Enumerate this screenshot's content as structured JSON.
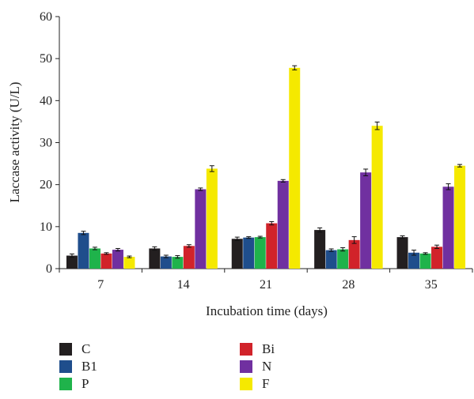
{
  "chart_data": {
    "type": "bar",
    "xlabel": "Incubation time (days)",
    "ylabel": "Laccase activity (U/L)",
    "ylim": [
      0,
      60
    ],
    "yticks": [
      0,
      10,
      20,
      30,
      40,
      50,
      60
    ],
    "categories": [
      "7",
      "14",
      "21",
      "28",
      "35"
    ],
    "grid": false,
    "legend_position": "bottom",
    "series": [
      {
        "name": "C",
        "color": "#231f20",
        "values": [
          3.1,
          4.8,
          7.1,
          9.2,
          7.5
        ],
        "errors": [
          0.4,
          0.4,
          0.4,
          0.5,
          0.3
        ]
      },
      {
        "name": "B1",
        "color": "#1f4e8c",
        "values": [
          8.5,
          2.9,
          7.4,
          4.4,
          3.8
        ],
        "errors": [
          0.4,
          0.3,
          0.2,
          0.3,
          0.6
        ]
      },
      {
        "name": "P",
        "color": "#1fb34b",
        "values": [
          4.8,
          2.8,
          7.5,
          4.6,
          3.6
        ],
        "errors": [
          0.3,
          0.3,
          0.2,
          0.4,
          0.2
        ]
      },
      {
        "name": "Bi",
        "color": "#d1232a",
        "values": [
          3.6,
          5.4,
          10.8,
          6.8,
          5.2
        ],
        "errors": [
          0.2,
          0.3,
          0.4,
          0.8,
          0.4
        ]
      },
      {
        "name": "N",
        "color": "#7030a0",
        "values": [
          4.5,
          18.9,
          20.9,
          22.9,
          19.5
        ],
        "errors": [
          0.3,
          0.3,
          0.3,
          0.8,
          0.7
        ]
      },
      {
        "name": "F",
        "color": "#f5e900",
        "values": [
          2.8,
          23.8,
          47.8,
          34.0,
          24.5
        ],
        "errors": [
          0.2,
          0.7,
          0.5,
          0.9,
          0.3
        ]
      }
    ]
  }
}
